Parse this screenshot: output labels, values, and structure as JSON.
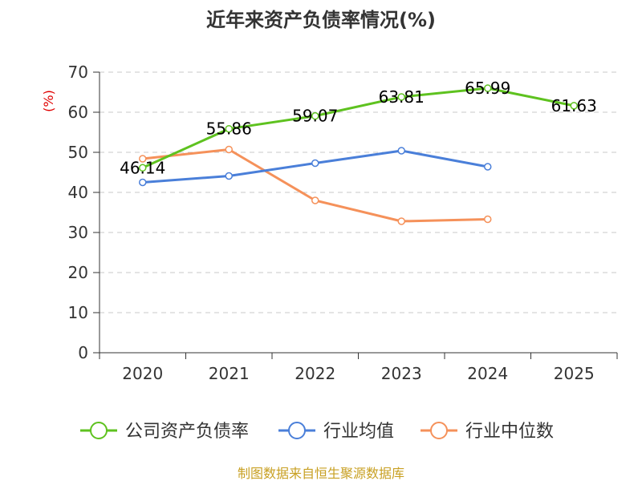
{
  "chart_data": {
    "type": "line",
    "title": "近年来资产负债率情况(%)",
    "xlabel": "",
    "ylabel": "(%)",
    "categories": [
      "2020",
      "2021",
      "2022",
      "2023",
      "2024",
      "2025"
    ],
    "ylim": [
      0,
      70
    ],
    "yticks": [
      0,
      10,
      20,
      30,
      40,
      50,
      60,
      70
    ],
    "grid": true,
    "legend_position": "bottom",
    "series": [
      {
        "name": "公司资产负债率",
        "color": "#5ec21f",
        "values": [
          46.14,
          55.86,
          59.07,
          63.81,
          65.99,
          61.63
        ],
        "labels": [
          "46.14",
          "55.86",
          "59.07",
          "63.81",
          "65.99",
          "61.63"
        ]
      },
      {
        "name": "行业均值",
        "color": "#4a7fd9",
        "values": [
          42.5,
          44.1,
          47.3,
          50.4,
          46.4,
          null
        ]
      },
      {
        "name": "行业中位数",
        "color": "#f5915a",
        "values": [
          48.4,
          50.7,
          38.0,
          32.8,
          33.3,
          null
        ]
      }
    ],
    "source": "制图数据来自恒生聚源数据库"
  }
}
